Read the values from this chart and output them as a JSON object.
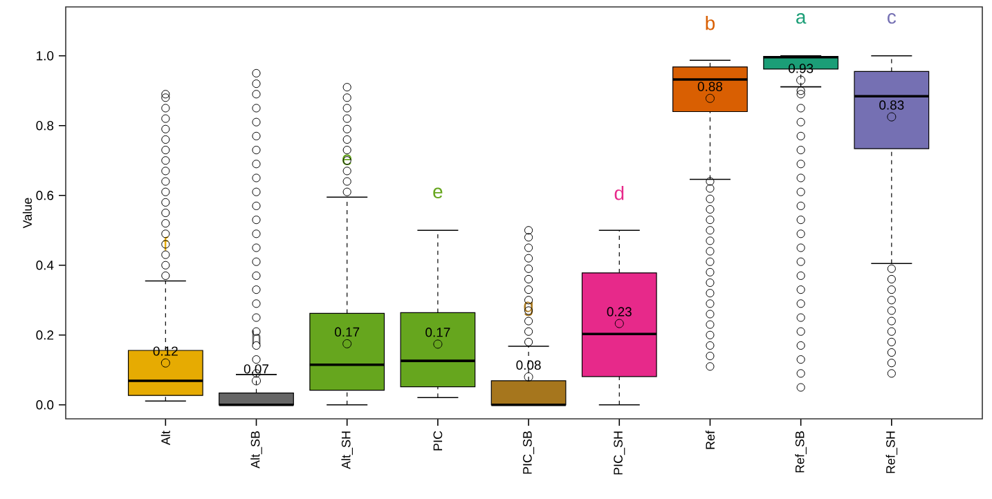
{
  "chart_data": {
    "type": "box",
    "ylabel": "Value",
    "categories": [
      "Alt",
      "Alt_SB",
      "Alt_SH",
      "PIC",
      "PIC_SB",
      "PIC_SH",
      "Ref",
      "Ref_SB",
      "Ref_SH"
    ],
    "colors": [
      "#e6ab02",
      "#666666",
      "#66a61e",
      "#66a61e",
      "#a6761d",
      "#e7298a",
      "#d95f02",
      "#1b9e77",
      "#7570b3"
    ],
    "boxes": [
      {
        "low": 0.011,
        "q1": 0.027,
        "median": 0.069,
        "q3": 0.156,
        "high": 0.355,
        "mean": 0.12,
        "outliers": [
          0.37,
          0.4,
          0.43,
          0.46,
          0.49,
          0.52,
          0.55,
          0.58,
          0.61,
          0.64,
          0.67,
          0.7,
          0.73,
          0.76,
          0.79,
          0.82,
          0.85,
          0.88,
          0.89
        ]
      },
      {
        "low": 0.0,
        "q1": 0.0,
        "median": 0.0,
        "q3": 0.034,
        "high": 0.087,
        "mean": 0.069,
        "outliers": [
          0.09,
          0.13,
          0.17,
          0.21,
          0.25,
          0.29,
          0.33,
          0.37,
          0.41,
          0.45,
          0.49,
          0.53,
          0.57,
          0.61,
          0.65,
          0.69,
          0.73,
          0.77,
          0.81,
          0.85,
          0.89,
          0.92,
          0.95
        ]
      },
      {
        "low": 0.0,
        "q1": 0.042,
        "median": 0.115,
        "q3": 0.262,
        "high": 0.595,
        "mean": 0.175,
        "outliers": [
          0.61,
          0.64,
          0.67,
          0.7,
          0.73,
          0.76,
          0.79,
          0.82,
          0.85,
          0.88,
          0.91
        ]
      },
      {
        "low": 0.021,
        "q1": 0.052,
        "median": 0.126,
        "q3": 0.264,
        "high": 0.5,
        "mean": 0.174
      },
      {
        "low": 0.0,
        "q1": 0.0,
        "median": 0.0,
        "q3": 0.069,
        "high": 0.168,
        "mean": 0.08,
        "outliers": [
          0.18,
          0.21,
          0.24,
          0.27,
          0.3,
          0.33,
          0.36,
          0.39,
          0.42,
          0.45,
          0.48,
          0.5
        ]
      },
      {
        "low": 0.0,
        "q1": 0.081,
        "median": 0.203,
        "q3": 0.378,
        "high": 0.5,
        "mean": 0.233
      },
      {
        "low": 0.646,
        "q1": 0.84,
        "median": 0.932,
        "q3": 0.968,
        "high": 0.987,
        "mean": 0.878,
        "outliers": [
          0.11,
          0.14,
          0.17,
          0.2,
          0.23,
          0.26,
          0.29,
          0.32,
          0.35,
          0.38,
          0.41,
          0.44,
          0.47,
          0.5,
          0.53,
          0.56,
          0.59,
          0.62,
          0.64
        ]
      },
      {
        "low": 0.911,
        "q1": 0.962,
        "median": 0.996,
        "q3": 0.998,
        "high": 1.0,
        "mean": 0.93,
        "outliers": [
          0.05,
          0.09,
          0.13,
          0.17,
          0.21,
          0.25,
          0.29,
          0.33,
          0.37,
          0.41,
          0.45,
          0.49,
          0.53,
          0.57,
          0.61,
          0.65,
          0.69,
          0.73,
          0.77,
          0.81,
          0.85,
          0.89,
          0.9
        ]
      },
      {
        "low": 0.405,
        "q1": 0.734,
        "median": 0.884,
        "q3": 0.955,
        "high": 1.0,
        "mean": 0.825,
        "outliers": [
          0.09,
          0.12,
          0.15,
          0.18,
          0.21,
          0.24,
          0.27,
          0.3,
          0.33,
          0.36,
          0.39
        ]
      }
    ],
    "ylim": [
      -0.04,
      1.14
    ],
    "yticks": [
      {
        "value": 0.0,
        "label": "0.0"
      },
      0.2,
      0.4,
      0.6,
      0.8,
      {
        "value": 1.0,
        "label": "1.0"
      }
    ],
    "grid": false,
    "annotations": [
      "f",
      "h",
      "e",
      "e",
      "g",
      "d",
      "b",
      "a",
      "c",
      "0.12",
      "0.07",
      "0.17",
      "0.17",
      "0.08",
      "0.23",
      "0.88",
      "0.93",
      "0.83"
    ]
  }
}
